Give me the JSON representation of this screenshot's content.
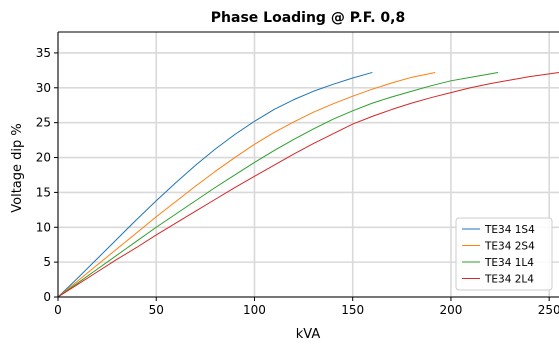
{
  "chart_data": {
    "type": "line",
    "title": "Phase Loading @ P.F. 0,8",
    "xlabel": "kVA",
    "ylabel": "Voltage dip %",
    "xlim": [
      0,
      255
    ],
    "ylim": [
      0,
      38
    ],
    "xticks": [
      0,
      50,
      100,
      150,
      200,
      250
    ],
    "yticks": [
      0,
      5,
      10,
      15,
      20,
      25,
      30,
      35
    ],
    "grid": true,
    "legend_position": "lower-right",
    "series": [
      {
        "name": "TE34 1S4",
        "color": "#1f77b4",
        "points": [
          [
            0,
            0
          ],
          [
            10,
            2.7
          ],
          [
            20,
            5.5
          ],
          [
            30,
            8.3
          ],
          [
            40,
            11.1
          ],
          [
            50,
            13.8
          ],
          [
            60,
            16.4
          ],
          [
            70,
            18.9
          ],
          [
            80,
            21.2
          ],
          [
            90,
            23.3
          ],
          [
            100,
            25.2
          ],
          [
            110,
            26.9
          ],
          [
            120,
            28.3
          ],
          [
            130,
            29.5
          ],
          [
            140,
            30.5
          ],
          [
            150,
            31.4
          ],
          [
            160,
            32.2
          ]
        ]
      },
      {
        "name": "TE34 2S4",
        "color": "#ff7f0e",
        "points": [
          [
            0,
            0
          ],
          [
            10,
            2.3
          ],
          [
            20,
            4.6
          ],
          [
            30,
            6.9
          ],
          [
            40,
            9.2
          ],
          [
            50,
            11.5
          ],
          [
            60,
            13.7
          ],
          [
            70,
            15.9
          ],
          [
            80,
            18.0
          ],
          [
            90,
            20.0
          ],
          [
            100,
            21.9
          ],
          [
            110,
            23.6
          ],
          [
            120,
            25.1
          ],
          [
            130,
            26.5
          ],
          [
            140,
            27.7
          ],
          [
            150,
            28.8
          ],
          [
            160,
            29.8
          ],
          [
            170,
            30.7
          ],
          [
            180,
            31.5
          ],
          [
            192,
            32.2
          ]
        ]
      },
      {
        "name": "TE34 1L4",
        "color": "#2ca02c",
        "points": [
          [
            0,
            0
          ],
          [
            10,
            2.0
          ],
          [
            20,
            4.0
          ],
          [
            30,
            6.0
          ],
          [
            40,
            8.0
          ],
          [
            50,
            10.0
          ],
          [
            60,
            11.9
          ],
          [
            70,
            13.8
          ],
          [
            80,
            15.7
          ],
          [
            90,
            17.5
          ],
          [
            100,
            19.3
          ],
          [
            110,
            21.0
          ],
          [
            120,
            22.6
          ],
          [
            130,
            24.1
          ],
          [
            140,
            25.5
          ],
          [
            150,
            26.7
          ],
          [
            160,
            27.8
          ],
          [
            170,
            28.7
          ],
          [
            180,
            29.5
          ],
          [
            190,
            30.3
          ],
          [
            200,
            31.0
          ],
          [
            212,
            31.6
          ],
          [
            224,
            32.2
          ]
        ]
      },
      {
        "name": "TE34 2L4",
        "color": "#d62728",
        "points": [
          [
            0,
            0
          ],
          [
            10,
            1.8
          ],
          [
            20,
            3.6
          ],
          [
            30,
            5.4
          ],
          [
            40,
            7.1
          ],
          [
            50,
            8.9
          ],
          [
            60,
            10.6
          ],
          [
            70,
            12.3
          ],
          [
            80,
            14.0
          ],
          [
            90,
            15.7
          ],
          [
            100,
            17.3
          ],
          [
            110,
            18.9
          ],
          [
            120,
            20.5
          ],
          [
            130,
            22.0
          ],
          [
            140,
            23.4
          ],
          [
            150,
            24.8
          ],
          [
            160,
            25.9
          ],
          [
            170,
            26.9
          ],
          [
            180,
            27.8
          ],
          [
            190,
            28.6
          ],
          [
            200,
            29.3
          ],
          [
            210,
            30.0
          ],
          [
            220,
            30.6
          ],
          [
            230,
            31.1
          ],
          [
            240,
            31.6
          ],
          [
            250,
            32.0
          ],
          [
            255,
            32.2
          ]
        ]
      }
    ]
  }
}
